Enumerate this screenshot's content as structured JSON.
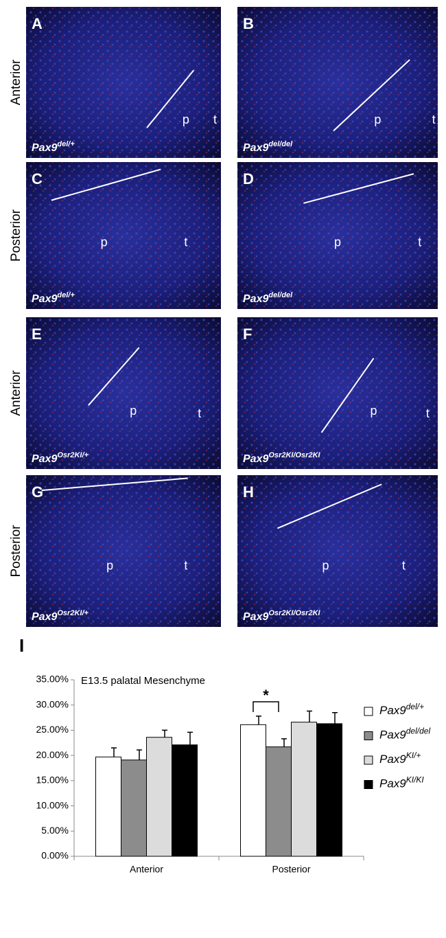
{
  "figure": {
    "rows": [
      {
        "label": "Anterior",
        "panels": [
          {
            "letter": "A",
            "genotype": {
              "base": "Pax9",
              "sup": "del/+"
            },
            "labels": [
              "p",
              "t"
            ]
          },
          {
            "letter": "B",
            "genotype": {
              "base": "Pax9",
              "sup": "del/del"
            },
            "labels": [
              "p",
              "t"
            ]
          }
        ]
      },
      {
        "label": "Posterior",
        "panels": [
          {
            "letter": "C",
            "genotype": {
              "base": "Pax9",
              "sup": "del/+"
            },
            "labels": [
              "p",
              "t"
            ]
          },
          {
            "letter": "D",
            "genotype": {
              "base": "Pax9",
              "sup": "del/del"
            },
            "labels": [
              "p",
              "t"
            ]
          }
        ]
      },
      {
        "label": "Anterior",
        "panels": [
          {
            "letter": "E",
            "genotype": {
              "base": "Pax9",
              "sup": "Osr2KI/+"
            },
            "labels": [
              "p",
              "t"
            ]
          },
          {
            "letter": "F",
            "genotype": {
              "base": "Pax9",
              "sup": "Osr2KI/Osr2KI"
            },
            "labels": [
              "p",
              "t"
            ]
          }
        ]
      },
      {
        "label": "Posterior",
        "panels": [
          {
            "letter": "G",
            "genotype": {
              "base": "Pax9",
              "sup": "Osr2KI/+"
            },
            "labels": [
              "p",
              "t"
            ]
          },
          {
            "letter": "H",
            "genotype": {
              "base": "Pax9",
              "sup": "Osr2KI/Osr2KI"
            },
            "labels": [
              "p",
              "t"
            ]
          }
        ]
      }
    ]
  },
  "chart_data": {
    "type": "bar",
    "panel_label": "I",
    "title": "E13.5 palatal Mesenchyme",
    "categories": [
      "Anterior",
      "Posterior"
    ],
    "series": [
      {
        "name": "Pax9",
        "name_sup": "del/+",
        "color": "#ffffff",
        "values": [
          19.7,
          26.1
        ],
        "errors": [
          1.8,
          1.7
        ]
      },
      {
        "name": "Pax9",
        "name_sup": "del/del",
        "color": "#8c8c8c",
        "values": [
          19.1,
          21.7
        ],
        "errors": [
          2.0,
          1.6
        ]
      },
      {
        "name": "Pax9",
        "name_sup": "KI/+",
        "color": "#dcdcdc",
        "values": [
          23.6,
          26.6
        ],
        "errors": [
          1.4,
          2.2
        ]
      },
      {
        "name": "Pax9",
        "name_sup": "KI/KI",
        "color": "#000000",
        "values": [
          22.1,
          26.3
        ],
        "errors": [
          2.5,
          2.2
        ]
      }
    ],
    "ylim": [
      0,
      35
    ],
    "yticks": [
      {
        "value": 0,
        "label": "0.00%"
      },
      {
        "value": 5,
        "label": "5.00%"
      },
      {
        "value": 10,
        "label": "10.00%"
      },
      {
        "value": 15,
        "label": "15.00%"
      },
      {
        "value": 20,
        "label": "20.00%"
      },
      {
        "value": 25,
        "label": "25.00%"
      },
      {
        "value": 30,
        "label": "30.00%"
      },
      {
        "value": 35,
        "label": "35.00%"
      }
    ],
    "annotation": "*"
  }
}
